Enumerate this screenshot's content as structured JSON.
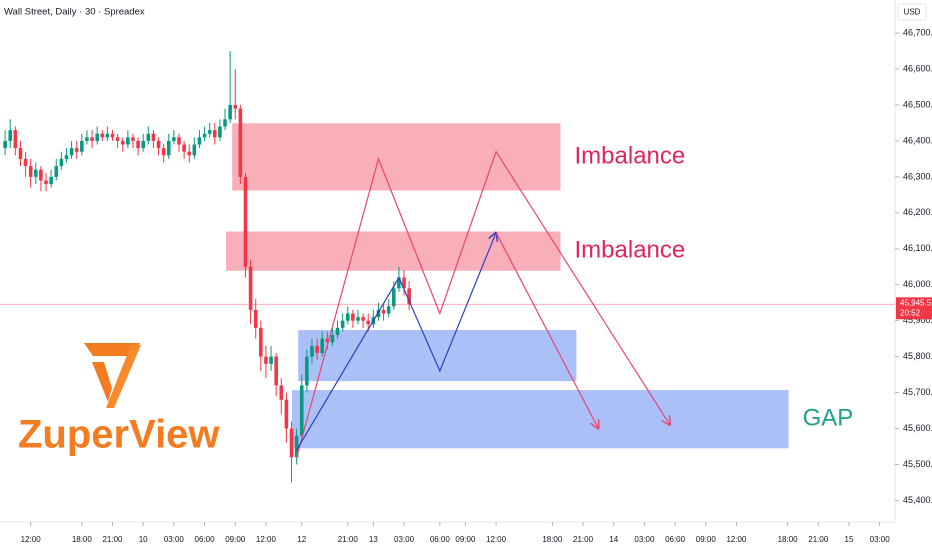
{
  "chart_data": {
    "type": "candlestick",
    "title": "Wall Street, Daily · 30 · Spreadex",
    "currency": "USD",
    "brand": "ZuperView",
    "up_color": "#089981",
    "down_color": "#f23645",
    "xlim": [
      0,
      175
    ],
    "ylim": [
      45340,
      46792
    ],
    "yticks": [
      {
        "value": 46700,
        "label": "46,700.0"
      },
      {
        "value": 46600,
        "label": "46,600.0"
      },
      {
        "value": 46500,
        "label": "46,500.0"
      },
      {
        "value": 46400,
        "label": "46,400.0"
      },
      {
        "value": 46300,
        "label": "46,300.0"
      },
      {
        "value": 46200,
        "label": "46,200.0"
      },
      {
        "value": 46100,
        "label": "46,100.0"
      },
      {
        "value": 46000,
        "label": "46,000.0"
      },
      {
        "value": 45900,
        "label": "45,900.0"
      },
      {
        "value": 45800,
        "label": "45,800.0"
      },
      {
        "value": 45700,
        "label": "45,700.0"
      },
      {
        "value": 45600,
        "label": "45,600.0"
      },
      {
        "value": 45500,
        "label": "45,500.0"
      },
      {
        "value": 45400,
        "label": "45,400.0"
      }
    ],
    "xticks": [
      {
        "value": 6,
        "label": "12:00"
      },
      {
        "value": 16,
        "label": "18:00"
      },
      {
        "value": 22,
        "label": "21:00"
      },
      {
        "value": 28,
        "label": "10"
      },
      {
        "value": 34,
        "label": "03:00"
      },
      {
        "value": 40,
        "label": "06:00"
      },
      {
        "value": 46,
        "label": "09:00"
      },
      {
        "value": 52,
        "label": "12:00"
      },
      {
        "value": 59,
        "label": "12"
      },
      {
        "value": 68,
        "label": "21:00"
      },
      {
        "value": 73,
        "label": "13"
      },
      {
        "value": 79,
        "label": "03:00"
      },
      {
        "value": 86,
        "label": "06:00"
      },
      {
        "value": 91,
        "label": "09:00"
      },
      {
        "value": 97,
        "label": "12:00"
      },
      {
        "value": 108,
        "label": "18:00"
      },
      {
        "value": 114,
        "label": "21:00"
      },
      {
        "value": 120,
        "label": "14"
      },
      {
        "value": 126,
        "label": "03:00"
      },
      {
        "value": 132,
        "label": "06:00"
      },
      {
        "value": 138,
        "label": "09:00"
      },
      {
        "value": 144,
        "label": "12:00"
      },
      {
        "value": 154,
        "label": "18:00"
      },
      {
        "value": 160,
        "label": "21:00"
      },
      {
        "value": 166,
        "label": "15"
      },
      {
        "value": 172,
        "label": "03:00"
      }
    ],
    "x": [
      1,
      2,
      3,
      4,
      5,
      6,
      7,
      8,
      9,
      10,
      11,
      12,
      13,
      14,
      15,
      16,
      17,
      18,
      19,
      20,
      21,
      22,
      23,
      24,
      25,
      26,
      27,
      28,
      29,
      30,
      31,
      32,
      33,
      34,
      35,
      36,
      37,
      38,
      39,
      40,
      41,
      42,
      43,
      44,
      45,
      46,
      47,
      48,
      49,
      50,
      51,
      52,
      53,
      54,
      55,
      56,
      57,
      58,
      59,
      60,
      61,
      62,
      63,
      64,
      65,
      66,
      67,
      68,
      69,
      70,
      71,
      72,
      73,
      74,
      75,
      76,
      77,
      78,
      79,
      80
    ],
    "open": [
      46380,
      46400,
      46430,
      46380,
      46350,
      46330,
      46300,
      46320,
      46290,
      46280,
      46300,
      46330,
      46350,
      46360,
      46380,
      46370,
      46400,
      46410,
      46400,
      46420,
      46410,
      46420,
      46410,
      46400,
      46390,
      46410,
      46400,
      46380,
      46400,
      46420,
      46400,
      46380,
      46360,
      46400,
      46410,
      46390,
      46370,
      46360,
      46390,
      46410,
      46420,
      46430,
      46410,
      46440,
      46460,
      46500,
      46490,
      46300,
      46050,
      45930,
      45880,
      45800,
      45780,
      45800,
      45720,
      45680,
      45600,
      45520,
      45580,
      45720,
      45800,
      45830,
      45810,
      45850,
      45840,
      45860,
      45880,
      45900,
      45920,
      45900,
      45910,
      45900,
      45890,
      45910,
      45930,
      45920,
      45940,
      45990,
      46020,
      45990
    ],
    "high": [
      46430,
      46460,
      46440,
      46400,
      46370,
      46350,
      46340,
      46330,
      46310,
      46320,
      46350,
      46370,
      46380,
      46400,
      46400,
      46420,
      46430,
      46430,
      46440,
      46430,
      46440,
      46430,
      46420,
      46410,
      46430,
      46420,
      46410,
      46420,
      46440,
      46430,
      46410,
      46390,
      46420,
      46430,
      46420,
      46400,
      46390,
      46410,
      46430,
      46440,
      46450,
      46450,
      46460,
      46490,
      46650,
      46600,
      46500,
      46310,
      46070,
      45960,
      45900,
      45830,
      45830,
      45810,
      45740,
      45700,
      45620,
      45600,
      45750,
      45820,
      45850,
      45850,
      45870,
      45870,
      45880,
      45900,
      45920,
      45940,
      45930,
      45930,
      45920,
      45920,
      45930,
      45950,
      45950,
      45960,
      46010,
      46050,
      46040,
      46010
    ],
    "low": [
      46360,
      46380,
      46360,
      46330,
      46300,
      46270,
      46280,
      46260,
      46260,
      46270,
      46290,
      46320,
      46340,
      46350,
      46350,
      46360,
      46390,
      46380,
      46390,
      46400,
      46400,
      46400,
      46380,
      46370,
      46380,
      46380,
      46360,
      46370,
      46390,
      46380,
      46360,
      46340,
      46350,
      46390,
      46370,
      46350,
      46340,
      46350,
      46380,
      46400,
      46410,
      46390,
      46400,
      46430,
      46450,
      46460,
      46280,
      46020,
      45890,
      45850,
      45760,
      45740,
      45760,
      45690,
      45640,
      45560,
      45450,
      45500,
      45570,
      45700,
      45780,
      45790,
      45800,
      45820,
      45830,
      45850,
      45870,
      45890,
      45880,
      45890,
      45880,
      45870,
      45880,
      45900,
      45900,
      45910,
      45930,
      45980,
      45970,
      45930
    ],
    "close": [
      46400,
      46430,
      46380,
      46350,
      46330,
      46300,
      46320,
      46290,
      46280,
      46300,
      46330,
      46350,
      46360,
      46380,
      46370,
      46400,
      46410,
      46400,
      46420,
      46410,
      46420,
      46410,
      46400,
      46390,
      46410,
      46400,
      46380,
      46400,
      46420,
      46400,
      46380,
      46360,
      46400,
      46410,
      46390,
      46370,
      46360,
      46390,
      46410,
      46420,
      46430,
      46410,
      46440,
      46460,
      46500,
      46490,
      46300,
      46050,
      45930,
      45880,
      45800,
      45780,
      45800,
      45720,
      45680,
      45600,
      45520,
      45580,
      45720,
      45800,
      45830,
      45810,
      45850,
      45840,
      45860,
      45880,
      45900,
      45920,
      45900,
      45910,
      45900,
      45890,
      45910,
      45930,
      45920,
      45940,
      45990,
      46020,
      45990,
      45945.5
    ],
    "last_price": {
      "value": 45945.5,
      "label": "45,945.5"
    },
    "countdown": "20:52",
    "zones": [
      {
        "label": "Imbalance",
        "x": [
          45.4,
          109.6
        ],
        "y": [
          46262,
          46449
        ],
        "color": "#f7a1ad",
        "label_color": "#e0245e"
      },
      {
        "label": "Imbalance",
        "x": [
          44.2,
          109.6
        ],
        "y": [
          46039,
          46148
        ],
        "color": "#f7a1ad",
        "label_color": "#e0245e"
      },
      {
        "label": null,
        "x": [
          58.3,
          112.7
        ],
        "y": [
          45732,
          45874
        ],
        "color": "#9db5f7",
        "label_color": "#2962ff"
      },
      {
        "label": "GAP",
        "x": [
          57.1,
          154.2
        ],
        "y": [
          45545,
          45707
        ],
        "color": "#9db5f7",
        "label_color": "#22a08d"
      }
    ],
    "paths": [
      {
        "x": [
          58,
          74,
          86,
          97,
          131
        ],
        "y": [
          45520,
          46350,
          45920,
          46370,
          45610
        ],
        "color": "#e8456f",
        "arrow": true
      },
      {
        "x": [
          58,
          78,
          86,
          97
        ],
        "y": [
          45540,
          46020,
          45760,
          46145
        ],
        "color": "#2a3fbf",
        "arrow": true
      },
      {
        "x": [
          97,
          117
        ],
        "y": [
          46145,
          45600
        ],
        "color": "#e8456f",
        "arrow": true
      }
    ]
  }
}
